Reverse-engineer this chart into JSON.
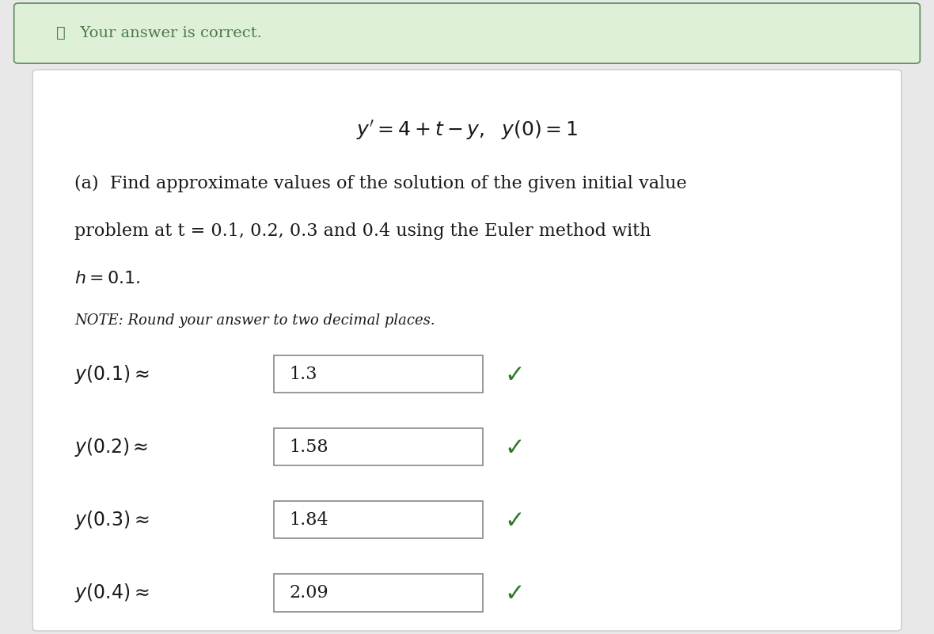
{
  "bg_color": "#f0f7f0",
  "banner_text": "✓   Your answer is correct.",
  "banner_bg": "#dff0d8",
  "banner_border": "#5a8a5a",
  "banner_text_color": "#4a7a4a",
  "outer_bg": "#e8e8e8",
  "inner_bg": "#ffffff",
  "inner_border": "#cccccc",
  "equation": "y' = 4 + t − y,   y(0) = 1",
  "part_a_text_line1": "(a)  Find approximate values of the solution of the given initial value",
  "part_a_text_line2": "problem at t = 0.1, 0.2, 0.3 and 0.4 using the Euler method with",
  "part_a_text_line3": "h = 0.1.",
  "note_text": "NOTE: Round your answer to two decimal places.",
  "answers": [
    {
      "label": "y(0.1) ≈",
      "value": "1.3"
    },
    {
      "label": "y(0.2) ≈",
      "value": "1.58"
    },
    {
      "label": "y(0.3) ≈",
      "value": "1.84"
    },
    {
      "label": "y(0.4) ≈",
      "value": "2.09"
    }
  ],
  "check_color": "#2d7a2d",
  "text_color": "#1a1a1a",
  "box_border_color": "#888888",
  "font_size_equation": 18,
  "font_size_body": 16,
  "font_size_note": 13,
  "font_size_answers": 16,
  "font_size_banner": 14
}
